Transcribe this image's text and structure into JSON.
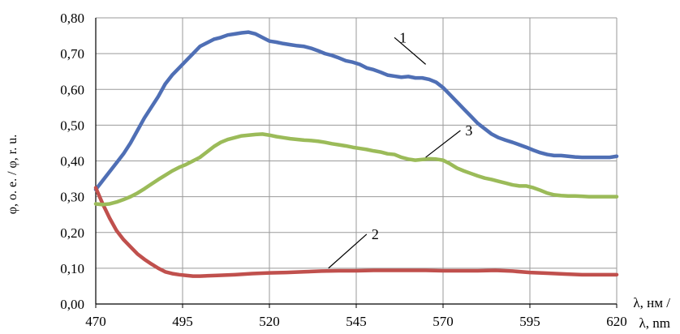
{
  "chart_data": {
    "type": "line",
    "title": "",
    "ylabel": "φ, о. е. / φ,  r. u.",
    "xlabel_lines": [
      "λ, нм /",
      "λ, nm"
    ],
    "xlim": [
      470,
      620
    ],
    "ylim": [
      0,
      0.8
    ],
    "x_ticks": [
      470,
      495,
      520,
      545,
      570,
      595,
      620
    ],
    "x_tick_labels": [
      "470",
      "495",
      "520",
      "545",
      "570",
      "595",
      "620"
    ],
    "y_ticks": [
      0,
      0.1,
      0.2,
      0.3,
      0.4,
      0.5,
      0.6,
      0.7,
      0.8
    ],
    "y_tick_labels": [
      "0,00",
      "0,10",
      "0,20",
      "0,30",
      "0,40",
      "0,50",
      "0,60",
      "0,70",
      "0,80"
    ],
    "grid": true,
    "legend": "none",
    "series": [
      {
        "name": "1",
        "color": "#4f6fb5",
        "label_at": [
          565,
          0.67
        ],
        "label_offset": [
          556,
          0.745
        ],
        "x": [
          470,
          472,
          474,
          476,
          478,
          480,
          482,
          484,
          486,
          488,
          490,
          492,
          494,
          496,
          498,
          500,
          502,
          504,
          506,
          508,
          510,
          512,
          514,
          516,
          518,
          520,
          522,
          524,
          526,
          528,
          530,
          532,
          534,
          536,
          538,
          540,
          542,
          544,
          546,
          548,
          550,
          552,
          554,
          556,
          558,
          560,
          562,
          564,
          566,
          568,
          570,
          572,
          574,
          576,
          578,
          580,
          582,
          584,
          586,
          588,
          590,
          592,
          594,
          596,
          598,
          600,
          602,
          604,
          606,
          608,
          610,
          612,
          614,
          616,
          618,
          620
        ],
        "y": [
          0.32,
          0.345,
          0.37,
          0.395,
          0.42,
          0.45,
          0.485,
          0.52,
          0.55,
          0.58,
          0.615,
          0.64,
          0.66,
          0.68,
          0.7,
          0.72,
          0.73,
          0.74,
          0.745,
          0.752,
          0.755,
          0.758,
          0.76,
          0.755,
          0.745,
          0.735,
          0.732,
          0.728,
          0.725,
          0.722,
          0.72,
          0.715,
          0.708,
          0.7,
          0.695,
          0.688,
          0.68,
          0.676,
          0.67,
          0.66,
          0.655,
          0.648,
          0.64,
          0.637,
          0.634,
          0.636,
          0.632,
          0.632,
          0.628,
          0.62,
          0.605,
          0.585,
          0.565,
          0.545,
          0.525,
          0.505,
          0.49,
          0.475,
          0.465,
          0.458,
          0.452,
          0.445,
          0.438,
          0.43,
          0.423,
          0.418,
          0.415,
          0.415,
          0.413,
          0.411,
          0.41,
          0.41,
          0.41,
          0.41,
          0.41,
          0.413
        ]
      },
      {
        "name": "2",
        "color": "#c0504d",
        "label_at": [
          537,
          0.1
        ],
        "label_offset": [
          548,
          0.195
        ],
        "x": [
          470,
          472,
          474,
          476,
          478,
          480,
          482,
          484,
          486,
          488,
          490,
          492,
          494,
          496,
          498,
          500,
          505,
          510,
          515,
          520,
          525,
          530,
          535,
          540,
          545,
          550,
          555,
          560,
          565,
          570,
          575,
          580,
          585,
          590,
          595,
          600,
          605,
          610,
          615,
          620
        ],
        "y": [
          0.325,
          0.28,
          0.24,
          0.205,
          0.18,
          0.16,
          0.14,
          0.125,
          0.112,
          0.1,
          0.09,
          0.085,
          0.082,
          0.08,
          0.078,
          0.078,
          0.08,
          0.082,
          0.085,
          0.087,
          0.088,
          0.09,
          0.092,
          0.093,
          0.093,
          0.094,
          0.094,
          0.094,
          0.094,
          0.093,
          0.093,
          0.093,
          0.094,
          0.092,
          0.088,
          0.086,
          0.084,
          0.082,
          0.082,
          0.082
        ]
      },
      {
        "name": "3",
        "color": "#9bbb59",
        "label_at": [
          565,
          0.41
        ],
        "label_offset": [
          575,
          0.485
        ],
        "x": [
          470,
          472,
          474,
          476,
          478,
          480,
          482,
          484,
          486,
          488,
          490,
          492,
          494,
          496,
          498,
          500,
          502,
          504,
          506,
          508,
          510,
          512,
          514,
          516,
          518,
          520,
          522,
          524,
          526,
          528,
          530,
          532,
          534,
          536,
          538,
          540,
          542,
          544,
          546,
          548,
          550,
          552,
          554,
          556,
          558,
          560,
          562,
          564,
          566,
          568,
          570,
          572,
          574,
          576,
          578,
          580,
          582,
          584,
          586,
          588,
          590,
          592,
          594,
          596,
          598,
          600,
          602,
          604,
          606,
          608,
          610,
          612,
          614,
          616,
          618,
          620
        ],
        "y": [
          0.28,
          0.278,
          0.28,
          0.285,
          0.292,
          0.3,
          0.31,
          0.322,
          0.335,
          0.348,
          0.36,
          0.372,
          0.382,
          0.39,
          0.4,
          0.41,
          0.425,
          0.44,
          0.452,
          0.46,
          0.465,
          0.47,
          0.472,
          0.474,
          0.475,
          0.472,
          0.468,
          0.465,
          0.462,
          0.46,
          0.458,
          0.457,
          0.455,
          0.452,
          0.448,
          0.445,
          0.442,
          0.438,
          0.435,
          0.432,
          0.428,
          0.425,
          0.42,
          0.418,
          0.41,
          0.405,
          0.402,
          0.404,
          0.406,
          0.405,
          0.402,
          0.392,
          0.38,
          0.372,
          0.365,
          0.358,
          0.352,
          0.348,
          0.343,
          0.338,
          0.333,
          0.33,
          0.33,
          0.325,
          0.318,
          0.31,
          0.305,
          0.303,
          0.302,
          0.302,
          0.301,
          0.3,
          0.3,
          0.3,
          0.3,
          0.3
        ]
      }
    ]
  }
}
